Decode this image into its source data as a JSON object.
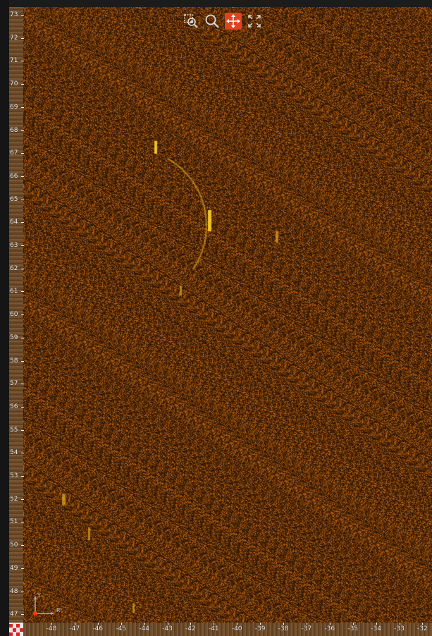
{
  "toolbar": {
    "tools": [
      {
        "name": "zoom-to-box-icon",
        "active": false
      },
      {
        "name": "zoom-icon",
        "active": false
      },
      {
        "name": "pan-icon",
        "active": true
      },
      {
        "name": "fit-extent-icon",
        "active": false
      }
    ],
    "active_color": "#e1431f"
  },
  "y_axis": {
    "ticks": [
      "73",
      "72",
      "71",
      "70",
      "69",
      "68",
      "67",
      "66",
      "65",
      "64",
      "63",
      "62",
      "61",
      "60",
      "59",
      "58",
      "57",
      "56",
      "55",
      "54",
      "53",
      "52",
      "51",
      "50",
      "49",
      "48",
      "47"
    ]
  },
  "x_axis": {
    "ticks": [
      "-48",
      "-47",
      "-46",
      "-45",
      "-44",
      "-43",
      "-42",
      "-41",
      "-40",
      "-39",
      "-38",
      "-37",
      "-36",
      "-35",
      "-34",
      "-33",
      "-32"
    ]
  },
  "gizmo": {
    "y_label": "Y",
    "x_label": "R"
  },
  "colors": {
    "sonar_dark": "#2a1604",
    "sonar_mid": "#6b3d0c",
    "sonar_bright": "#f0c020"
  }
}
